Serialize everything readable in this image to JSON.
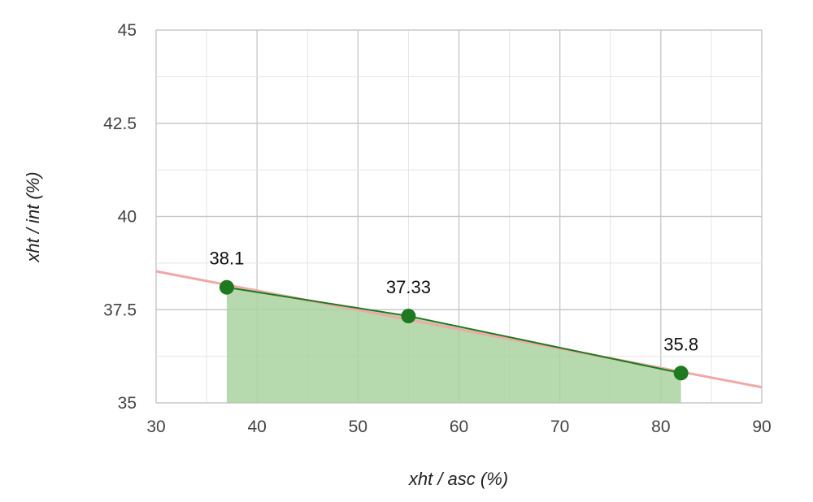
{
  "chart_data": {
    "type": "line",
    "title": "",
    "xlabel": "xht / asc (%)",
    "ylabel": "xht / int (%)",
    "xlim": [
      30,
      90
    ],
    "ylim": [
      35,
      45
    ],
    "x_ticks": [
      "30",
      "40",
      "50",
      "60",
      "70",
      "80",
      "90"
    ],
    "y_ticks": [
      "35",
      "37.5",
      "40",
      "42.5",
      "45"
    ],
    "grid": true,
    "legend": "none",
    "series": [
      {
        "x": [
          37,
          55,
          82
        ],
        "y": [
          38.1,
          37.33,
          35.8
        ],
        "labels": [
          "38.1",
          "37.33",
          "35.8"
        ],
        "color": "#1e7a1e",
        "fill_color": "#a9d2a0",
        "area_fill": true
      }
    ],
    "trendline": {
      "x": [
        30,
        90
      ],
      "y": [
        38.53,
        35.42
      ],
      "color": "#f0a8a8"
    }
  }
}
